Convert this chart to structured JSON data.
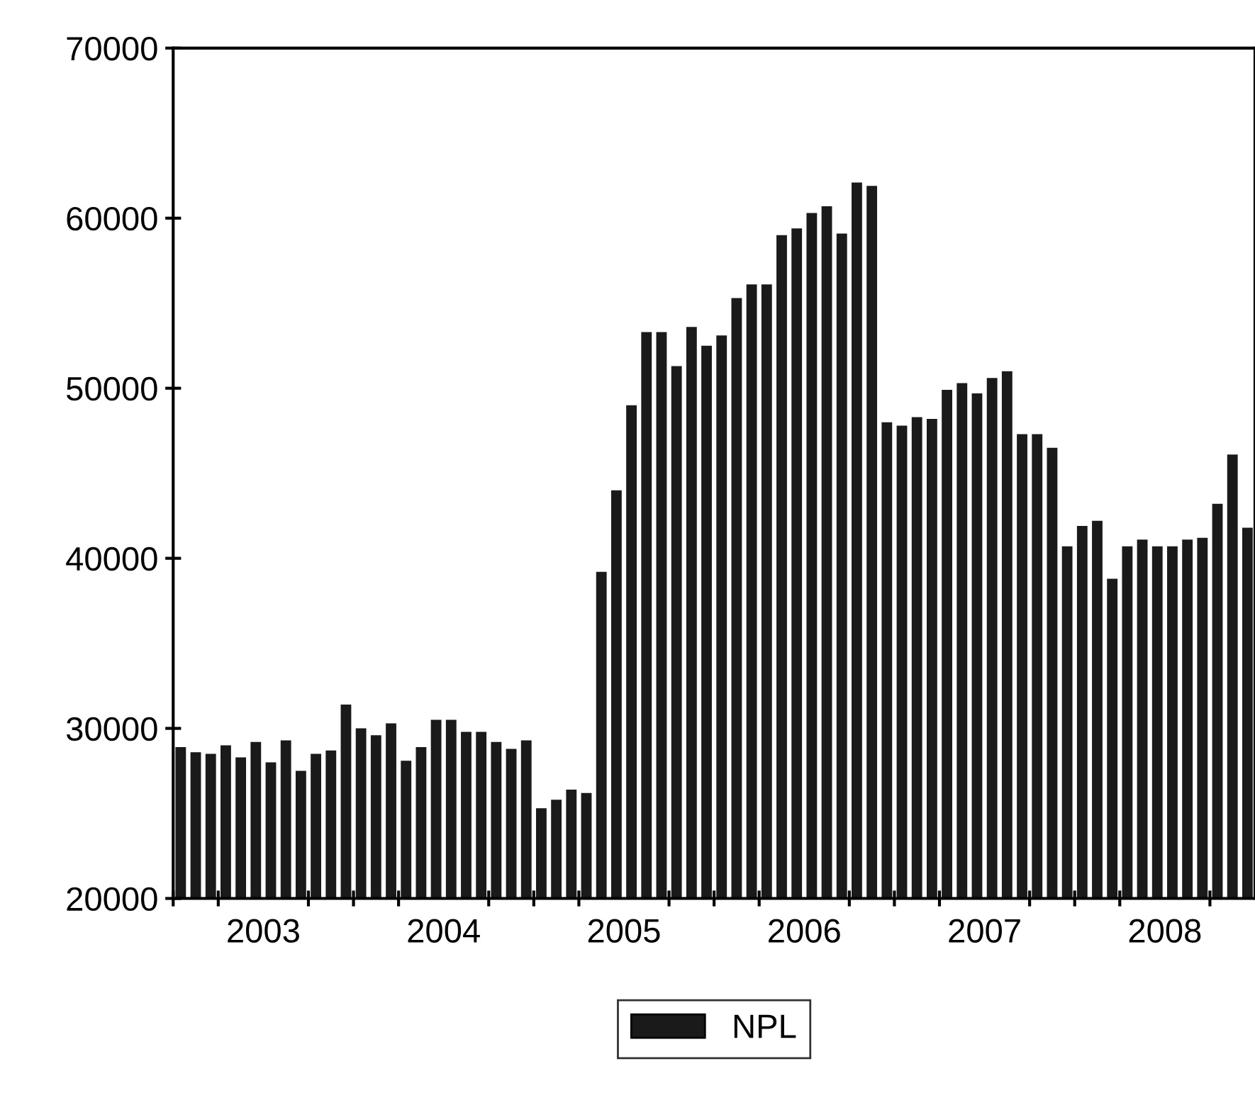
{
  "chart_data": {
    "type": "bar",
    "categories": [
      null,
      null,
      null,
      null,
      null,
      null,
      "2003",
      null,
      null,
      null,
      null,
      null,
      null,
      null,
      null,
      null,
      null,
      null,
      "2004",
      null,
      null,
      null,
      null,
      null,
      null,
      null,
      null,
      null,
      null,
      null,
      "2005",
      null,
      null,
      null,
      null,
      null,
      null,
      null,
      null,
      null,
      null,
      null,
      "2006",
      null,
      null,
      null,
      null,
      null,
      null,
      null,
      null,
      null,
      null,
      null,
      "2007",
      null,
      null,
      null,
      null,
      null,
      null,
      null,
      null,
      null,
      null,
      null,
      "2008",
      null,
      null,
      null,
      null,
      null
    ],
    "series": [
      {
        "name": "NPL",
        "color": "#1a1a1a",
        "values": [
          28900,
          28600,
          28500,
          29000,
          28300,
          29200,
          28000,
          29300,
          27500,
          28500,
          28700,
          31400,
          30000,
          29600,
          30300,
          28100,
          28900,
          30500,
          30500,
          29800,
          29800,
          29200,
          28800,
          29300,
          25300,
          25800,
          26400,
          26200,
          39200,
          44000,
          49000,
          53300,
          53300,
          51300,
          53600,
          52500,
          53100,
          55300,
          56100,
          56100,
          59000,
          59400,
          60300,
          60700,
          59100,
          62100,
          61900,
          48000,
          47800,
          48300,
          48200,
          49900,
          50300,
          49700,
          50600,
          51000,
          47300,
          47300,
          46500,
          40700,
          41900,
          42200,
          38800,
          40700,
          41100,
          40700,
          40700,
          41100,
          41200,
          43200,
          46100,
          41800
        ]
      }
    ],
    "ylim": [
      20000,
      70000
    ],
    "yticks": [
      20000,
      30000,
      40000,
      50000,
      60000,
      70000
    ],
    "legend": "bottom"
  }
}
